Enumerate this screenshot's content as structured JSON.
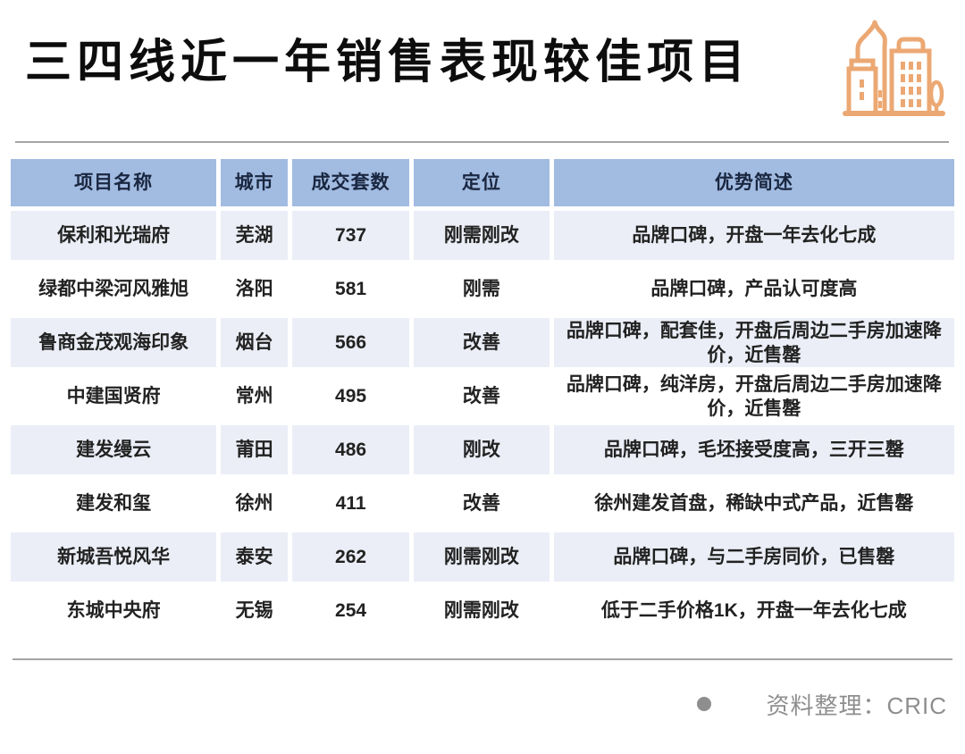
{
  "header": {
    "title": "三四线近一年销售表现较佳项目",
    "icon": "city-buildings-icon"
  },
  "chart_data": {
    "type": "table",
    "title": "三四线近一年销售表现较佳项目",
    "columns": [
      "项目名称",
      "城市",
      "成交套数",
      "定位",
      "优势简述"
    ],
    "rows": [
      [
        "保利和光瑞府",
        "芜湖",
        "737",
        "刚需刚改",
        "品牌口碑，开盘一年去化七成"
      ],
      [
        "绿都中梁河风雅旭",
        "洛阳",
        "581",
        "刚需",
        "品牌口碑，产品认可度高"
      ],
      [
        "鲁商金茂观海印象",
        "烟台",
        "566",
        "改善",
        "品牌口碑，配套佳，开盘后周边二手房加速降价，近售罄"
      ],
      [
        "中建国贤府",
        "常州",
        "495",
        "改善",
        "品牌口碑，纯洋房，开盘后周边二手房加速降价，近售罄"
      ],
      [
        "建发缦云",
        "莆田",
        "486",
        "刚改",
        "品牌口碑，毛坯接受度高，三开三罄"
      ],
      [
        "建发和玺",
        "徐州",
        "411",
        "改善",
        "徐州建发首盘，稀缺中式产品，近售罄"
      ],
      [
        "新城吾悦风华",
        "泰安",
        "262",
        "刚需刚改",
        "品牌口碑，与二手房同价，已售罄"
      ],
      [
        "东城中央府",
        "无锡",
        "254",
        "刚需刚改",
        "低于二手价格1K，开盘一年去化七成"
      ]
    ],
    "units_sold": [
      737,
      581,
      566,
      495,
      486,
      411,
      262,
      254
    ],
    "source": "资料整理：CRIC",
    "layout_hints": {
      "header_row": true,
      "zebra_striping": "odd-rows-light-blue",
      "grid": "white-gaps"
    }
  },
  "footer": {
    "source": "资料整理：CRIC"
  },
  "colors": {
    "header_bg": "#a2bbe1",
    "row_alt_bg": "#ebeef6",
    "header_text": "#1a2740",
    "body_text": "#222222",
    "icon_orange": "#ECA873",
    "divider": "#a5a5a5",
    "footer_gray": "#8e8e8e"
  }
}
